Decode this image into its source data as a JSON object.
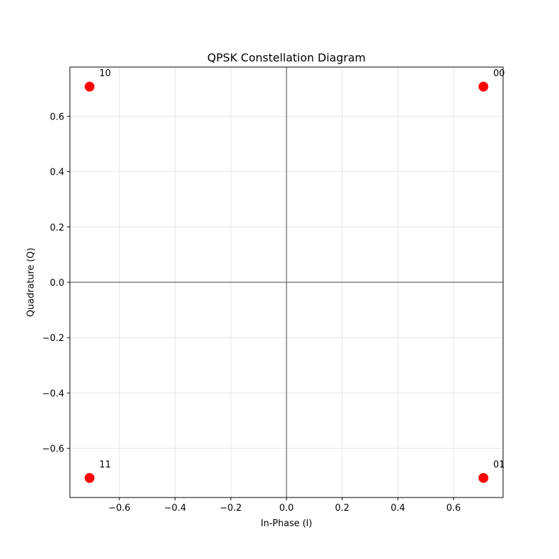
{
  "chart_data": {
    "type": "scatter",
    "title": "QPSK Constellation Diagram",
    "xlabel": "In-Phase (I)",
    "ylabel": "Quadrature (Q)",
    "xlim": [
      -0.7778,
      0.7778
    ],
    "ylim": [
      -0.7778,
      0.7778
    ],
    "xticks": [
      -0.6,
      -0.4,
      -0.2,
      0.0,
      0.2,
      0.4,
      0.6
    ],
    "yticks": [
      -0.6,
      -0.4,
      -0.2,
      0.0,
      0.2,
      0.4,
      0.6
    ],
    "xtick_labels": [
      "−0.6",
      "−0.4",
      "−0.2",
      "0.0",
      "0.2",
      "0.4",
      "0.6"
    ],
    "ytick_labels": [
      "−0.6",
      "−0.4",
      "−0.2",
      "0.0",
      "0.2",
      "0.4",
      "0.6"
    ],
    "grid": true,
    "zero_lines": true,
    "colors": {
      "point": "#ff0000",
      "grid": "#e0e0e0",
      "zero_line": "#808080",
      "frame": "#000000"
    },
    "points": [
      {
        "label": "00",
        "x": 0.7071,
        "y": 0.7071
      },
      {
        "label": "01",
        "x": 0.7071,
        "y": -0.7071
      },
      {
        "label": "10",
        "x": -0.7071,
        "y": 0.7071
      },
      {
        "label": "11",
        "x": -0.7071,
        "y": -0.7071
      }
    ]
  }
}
